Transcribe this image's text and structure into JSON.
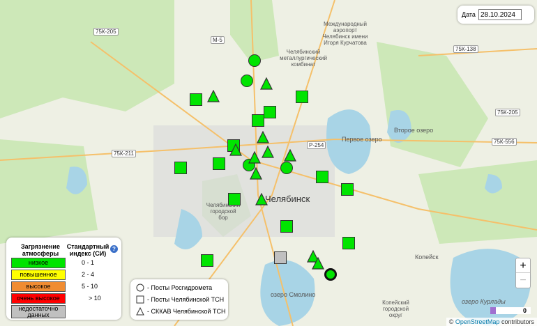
{
  "map_labels": {
    "city": "Челябинск",
    "lake1": "Первое озеро",
    "lake2": "Второе озеро",
    "lake3": "озеро Смолино",
    "lake4": "озеро Курлады",
    "kopeysk": "Копейск",
    "airport": "Международный аэропорт Челябинск имени Игоря Курчатова",
    "kombinat": "Челябинский металлургический комбинат",
    "bor": "Челябинский городской бор",
    "kopokrug": "Копейский городской округ"
  },
  "roads": [
    "75К-205",
    "М-5",
    "75К-138",
    "75К-205",
    "Р-254",
    "75К-556",
    "75К-211"
  ],
  "date": {
    "label": "Дата",
    "value": "28.10.2024"
  },
  "legend": {
    "header_level": "Загрязнение атмосферы",
    "header_index": "Стандартный индекс (СИ)",
    "help_icon": "question-circle-icon",
    "levels": [
      {
        "label": "низкое",
        "range": "0  -  1",
        "color": "#00e400"
      },
      {
        "label": "повышенное",
        "range": "2  -  4",
        "color": "#ffff00"
      },
      {
        "label": "высокое",
        "range": "5  -  10",
        "color": "#f08c32"
      },
      {
        "label": "очень высокое",
        "range": ">  10",
        "color": "#ff0000"
      },
      {
        "label": "недостаточно данных",
        "range": "",
        "color": "#c0c0c0"
      }
    ]
  },
  "station_types": [
    {
      "icon": "circle-icon",
      "label": "- Посты Росгидромета"
    },
    {
      "icon": "square-icon",
      "label": "- Посты Челябинской ТСН"
    },
    {
      "icon": "triangle-icon",
      "label": "- СККАВ Челябинской ТСН"
    }
  ],
  "stations_level_colors": {
    "low": "#00e400",
    "no_data": "#c0c0c0"
  },
  "zoom": {
    "in": "+",
    "out": "−"
  },
  "slider_value": "0",
  "attribution": {
    "prefix": "©",
    "link": "OpenStreetMap",
    "suffix": "contributors"
  }
}
